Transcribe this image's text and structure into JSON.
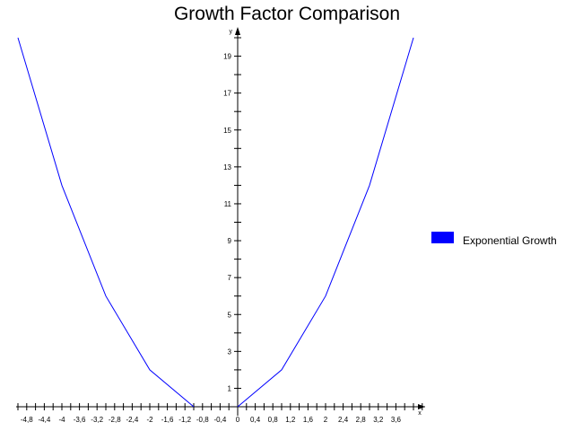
{
  "chart_data": {
    "type": "line",
    "title": "Growth Factor Comparison",
    "xlabel": "x",
    "ylabel": "y",
    "xlim": [
      -5,
      4.2
    ],
    "ylim": [
      0,
      20.5
    ],
    "grid": false,
    "legend": {
      "position": "right",
      "entries": [
        "Exponential Growth"
      ]
    },
    "x_tick_labels": [
      -4.8,
      -4.4,
      -4,
      -3.6,
      -3.2,
      -2.8,
      -2.4,
      -2,
      -1.6,
      -1.2,
      -0.8,
      -0.4,
      0,
      0.4,
      0.8,
      1.2,
      1.6,
      2,
      2.4,
      2.8,
      3.2,
      3.6
    ],
    "y_tick_labels": [
      1,
      3,
      5,
      7,
      9,
      11,
      13,
      15,
      17,
      19
    ],
    "series": [
      {
        "name": "Exponential Growth",
        "color": "#0000ff",
        "segments": [
          {
            "x": [
              -5,
              -4,
              -3,
              -2,
              -1
            ],
            "y": [
              20,
              12,
              6,
              2,
              0
            ]
          },
          {
            "x": [
              0,
              1,
              2,
              3,
              4
            ],
            "y": [
              0,
              2,
              6,
              12,
              20
            ]
          }
        ]
      }
    ]
  }
}
